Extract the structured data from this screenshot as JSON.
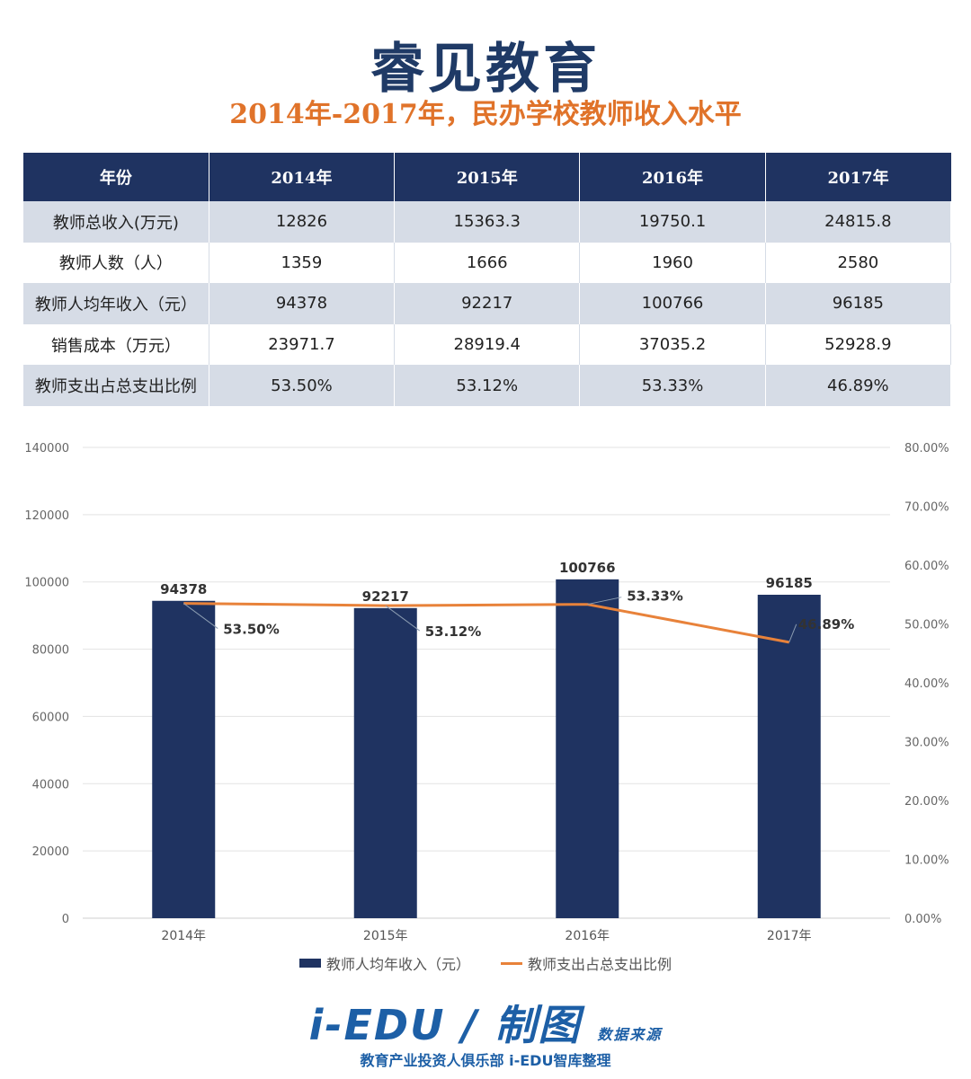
{
  "header": {
    "brand": "睿见教育",
    "subtitle": "2014年-2017年，民办学校教师收入水平"
  },
  "table": {
    "columns": [
      "年份",
      "2014年",
      "2015年",
      "2016年",
      "2017年"
    ],
    "rows": [
      [
        "教师总收入(万元)",
        "12826",
        "15363.3",
        "19750.1",
        "24815.8"
      ],
      [
        "教师人数（人）",
        "1359",
        "1666",
        "1960",
        "2580"
      ],
      [
        "教师人均年收入（元）",
        "94378",
        "92217",
        "100766",
        "96185"
      ],
      [
        "销售成本（万元）",
        "23971.7",
        "28919.4",
        "37035.2",
        "52928.9"
      ],
      [
        "教师支出占总支出比例",
        "53.50%",
        "53.12%",
        "53.33%",
        "46.89%"
      ]
    ]
  },
  "chart_data": {
    "type": "bar",
    "categories": [
      "2014年",
      "2015年",
      "2016年",
      "2017年"
    ],
    "series": [
      {
        "name": "教师人均年收入（元）",
        "type": "bar",
        "axis": "left",
        "values": [
          94378,
          92217,
          100766,
          96185
        ],
        "labels": [
          "94378",
          "92217",
          "100766",
          "96185"
        ],
        "color": "#1f3361"
      },
      {
        "name": "教师支出占总支出比例",
        "type": "line",
        "axis": "right",
        "values": [
          53.5,
          53.12,
          53.33,
          46.89
        ],
        "labels": [
          "53.50%",
          "53.12%",
          "53.33%",
          "46.89%"
        ],
        "color": "#e8823a"
      }
    ],
    "ylim": [
      0,
      140000
    ],
    "yticks": [
      "0",
      "20000",
      "40000",
      "60000",
      "80000",
      "100000",
      "120000",
      "140000"
    ],
    "y2lim": [
      0,
      80
    ],
    "y2ticks": [
      "0.00%",
      "10.00%",
      "20.00%",
      "30.00%",
      "40.00%",
      "50.00%",
      "60.00%",
      "70.00%",
      "80.00%"
    ],
    "grid": true,
    "legend": "bottom"
  },
  "footer": {
    "logo": "i-EDU",
    "logo_mark": "制图",
    "logo_small": "数据来源",
    "tagline": "教育产业投资人俱乐部  i-EDU智库整理"
  }
}
